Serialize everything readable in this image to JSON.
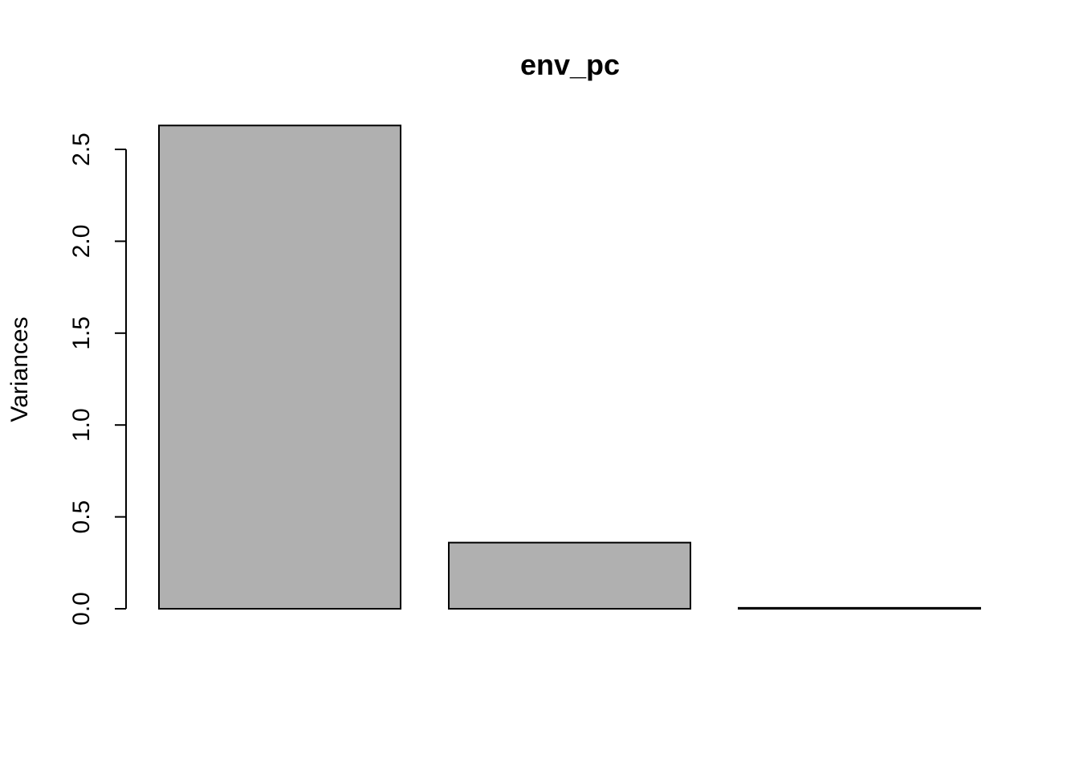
{
  "chart_data": {
    "type": "bar",
    "title": "env_pc",
    "xlabel": "",
    "ylabel": "Variances",
    "categories": [
      "",
      "",
      ""
    ],
    "values": [
      2.63,
      0.36,
      0.005
    ],
    "ylim": [
      0,
      2.5
    ],
    "yticks": [
      0.0,
      0.5,
      1.0,
      1.5,
      2.0,
      2.5
    ],
    "ytick_labels": [
      "0.0",
      "0.5",
      "1.0",
      "1.5",
      "2.0",
      "2.5"
    ],
    "grid": false,
    "legend": "none",
    "bar_fill": "#b0b0b0",
    "bar_stroke": "#000000"
  }
}
